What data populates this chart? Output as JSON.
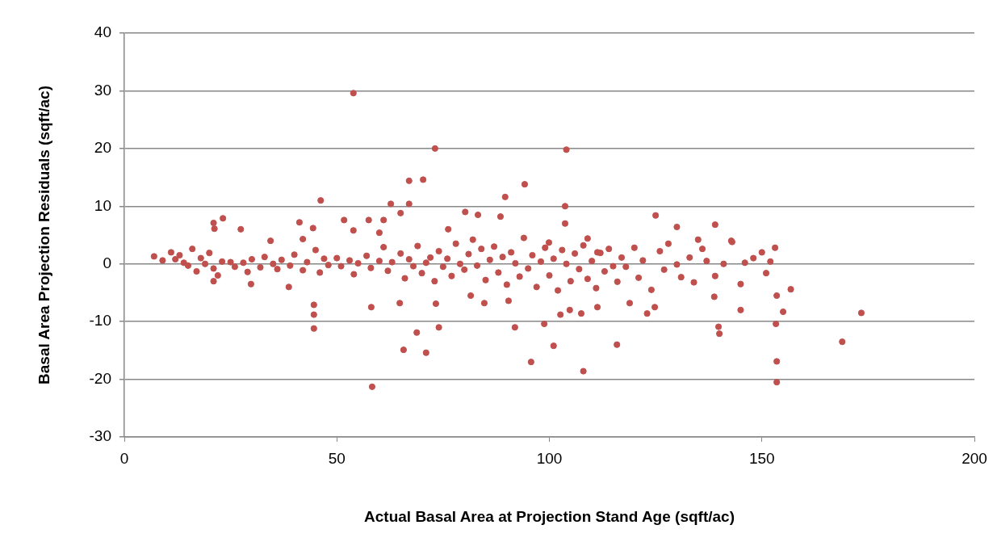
{
  "chart_data": {
    "type": "scatter",
    "xlabel": "Actual Basal Area at Projection Stand Age (sqft/ac)",
    "ylabel": "Basal Area Projection Residuals (sqft/ac)",
    "xlim": [
      0,
      200
    ],
    "xticks": [
      0,
      50,
      100,
      150,
      200
    ],
    "ylim": [
      -30,
      40
    ],
    "yticks": [
      -30,
      -20,
      -10,
      0,
      10,
      20,
      30,
      40
    ],
    "grid": "y",
    "marker": "circle",
    "legend": false,
    "series": [
      {
        "color": "#c0504d",
        "x": [
          53.9,
          73.1,
          104,
          70.3,
          67,
          94.2,
          89.6,
          46.2,
          62.7,
          67,
          103.7,
          58.3,
          153.5,
          108,
          153.5,
          95.7,
          71,
          65.7,
          115.9,
          101,
          168.9,
          68.8,
          44.6,
          74,
          91.9,
          139.8,
          140,
          153.3,
          98.8,
          44.6,
          44.6,
          58.1,
          173.4,
          155,
          145,
          123,
          107.5,
          102.6,
          104.8,
          156.8,
          153.5,
          138.8,
          124.8,
          118.9,
          111.3,
          84.7,
          90.4,
          81.5,
          64.8,
          73.3,
          38.7,
          21,
          29.8,
          139,
          142.8,
          153.1,
          150,
          125,
          130,
          111.3,
          135,
          80.2,
          83.2,
          88.5,
          65,
          61,
          57.5,
          51.7,
          41.2,
          23.2,
          21,
          21.2,
          27.4,
          34.4,
          42,
          44.4,
          53.9,
          60,
          76.2,
          103.7,
          99.9,
          109,
          7,
          9,
          11,
          12,
          13,
          14,
          15,
          16,
          17,
          18,
          19,
          20,
          21,
          22,
          23,
          25,
          26,
          28,
          29,
          30,
          32,
          33,
          35,
          36,
          37,
          39,
          40,
          42,
          43,
          45,
          46,
          47,
          48,
          50,
          51,
          53,
          54,
          55,
          57,
          58,
          60,
          61,
          62,
          63,
          65,
          66,
          67,
          68,
          69,
          70,
          71,
          72,
          73,
          74,
          75,
          76,
          77,
          78,
          79,
          80,
          81,
          82,
          83,
          84,
          85,
          86,
          87,
          88,
          89,
          90,
          91,
          92,
          93,
          94,
          95,
          96,
          97,
          98,
          99,
          100,
          101,
          102,
          103,
          104,
          105,
          106,
          107,
          108,
          109,
          110,
          111,
          112,
          113,
          114,
          115,
          116,
          117,
          118,
          120,
          121,
          122,
          124,
          126,
          127,
          128,
          130,
          131,
          133,
          134,
          136,
          137,
          139,
          141,
          143,
          145,
          146,
          148,
          151,
          152
        ],
        "values": [
          29.6,
          20,
          19.8,
          14.6,
          14.4,
          13.8,
          11.6,
          11,
          10.4,
          10.4,
          10,
          -21.3,
          -20.5,
          -18.6,
          -16.9,
          -17,
          -15.4,
          -14.9,
          -14,
          -14.2,
          -13.5,
          -11.9,
          -11.2,
          -11,
          -11,
          -10.9,
          -12.1,
          -10.4,
          -10.4,
          -8.8,
          -7.1,
          -7.5,
          -8.5,
          -8.3,
          -8,
          -8.6,
          -8.6,
          -8.8,
          -8,
          -4.4,
          -5.5,
          -5.7,
          -7.5,
          -6.8,
          -7.5,
          -6.8,
          -6.4,
          -5.5,
          -6.8,
          -6.9,
          -4,
          -3,
          -3.5,
          6.8,
          4,
          2.8,
          2,
          8.4,
          6.4,
          2,
          4.2,
          9,
          8.5,
          8.2,
          8.8,
          7.6,
          7.6,
          7.6,
          7.2,
          7.9,
          7.1,
          6.1,
          6,
          4,
          4.3,
          6.2,
          5.8,
          5.4,
          6,
          7,
          3.7,
          4.4,
          1.3,
          0.6,
          2,
          0.8,
          1.5,
          0.2,
          -0.3,
          2.6,
          -1.3,
          1,
          0,
          1.9,
          -0.8,
          -2,
          0.4,
          0.3,
          -0.5,
          0.2,
          -1.4,
          0.8,
          -0.6,
          1.2,
          0,
          -0.9,
          0.7,
          -0.3,
          1.6,
          -1.1,
          0.3,
          2.4,
          -1.5,
          0.9,
          -0.2,
          1,
          -0.4,
          0.6,
          -1.8,
          0.1,
          1.4,
          -0.7,
          0.5,
          2.9,
          -1.2,
          0.3,
          1.8,
          -2.5,
          0.8,
          -0.4,
          3.1,
          -1.6,
          0.2,
          1.1,
          -3,
          2.2,
          -0.5,
          0.9,
          -2.1,
          3.5,
          0,
          -1,
          1.7,
          4.2,
          -0.3,
          2.6,
          -2.8,
          0.7,
          3,
          -1.5,
          1.2,
          -3.6,
          2,
          0.1,
          -2.2,
          4.5,
          -0.8,
          1.5,
          -4,
          0.4,
          2.8,
          -2,
          0.9,
          -4.6,
          2.4,
          0,
          -3,
          1.8,
          -0.9,
          3.2,
          -2.6,
          0.5,
          -4.2,
          1.9,
          -1.3,
          2.6,
          -0.4,
          -3.1,
          1.1,
          -0.5,
          2.8,
          -2.4,
          0.6,
          -4.5,
          2.2,
          -1,
          3.5,
          -0.1,
          -2.3,
          1.1,
          -3.2,
          2.6,
          0.5,
          -2.1,
          0,
          3.8,
          -3.5,
          0.2,
          1,
          -1.6,
          0.4
        ]
      }
    ]
  }
}
